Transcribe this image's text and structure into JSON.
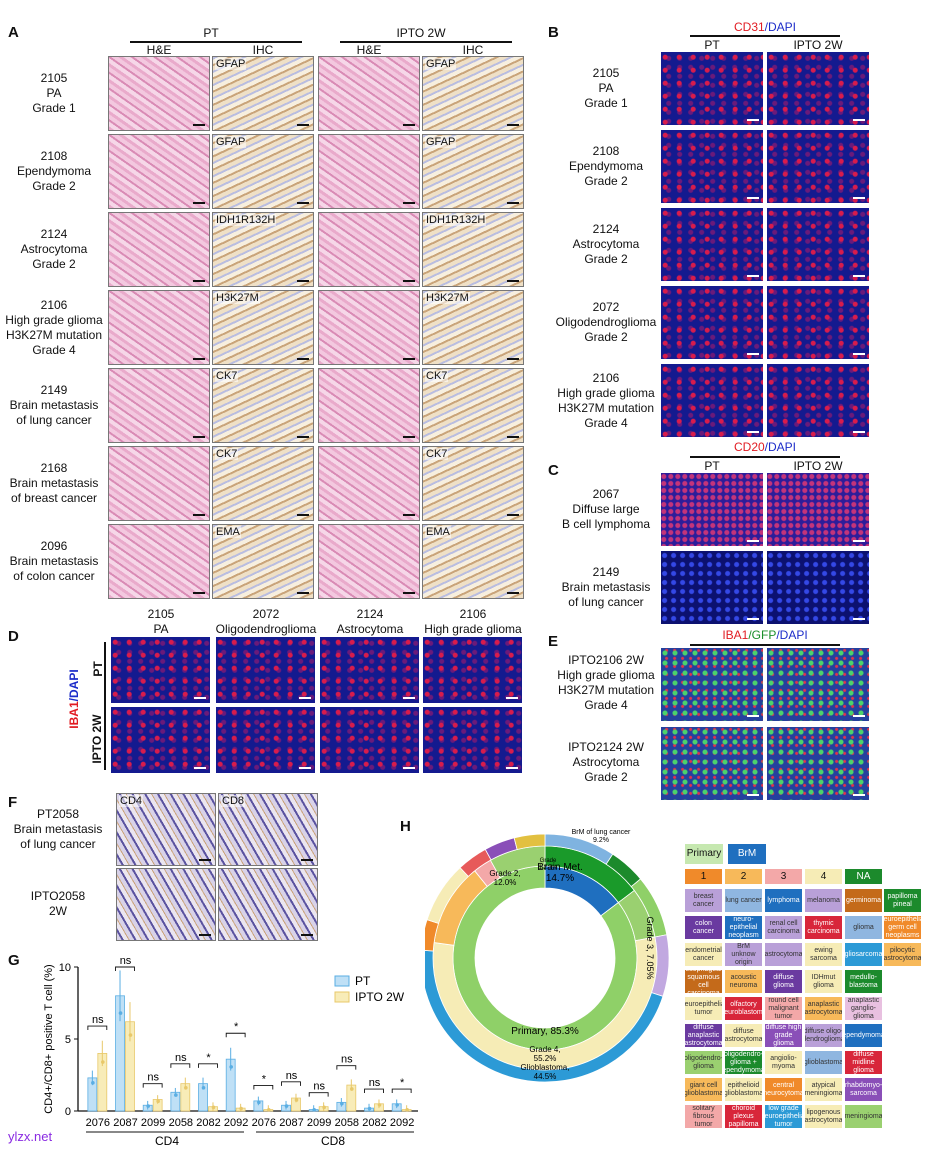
{
  "panelA": {
    "label": "A",
    "group_pt": "PT",
    "group_ipto": "IPTO 2W",
    "sub_he": "H&E",
    "sub_ihc": "IHC",
    "rows": [
      {
        "label": "2105\nPA\nGrade 1",
        "stain": "GFAP"
      },
      {
        "label": "2108\nEpendymoma\nGrade 2",
        "stain": "GFAP"
      },
      {
        "label": "2124\nAstrocytoma\nGrade 2",
        "stain": "IDH1R132H"
      },
      {
        "label": "2106\nHigh grade glioma\nH3K27M mutation\nGrade 4",
        "stain": "H3K27M"
      },
      {
        "label": "2149\nBrain metastasis\nof  lung cancer",
        "stain": "CK7"
      },
      {
        "label": "2168\nBrain metastasis\nof  breast cancer",
        "stain": "CK7"
      },
      {
        "label": "2096\nBrain metastasis\nof  colon cancer",
        "stain": "EMA"
      }
    ]
  },
  "panelB": {
    "label": "B",
    "title_red": "CD31",
    "title_blue": "/DAPI",
    "col_pt": "PT",
    "col_ipto": "IPTO 2W",
    "rows": [
      "2105\nPA\nGrade 1",
      "2108\nEpendymoma\nGrade 2",
      "2124\nAstrocytoma\nGrade 2",
      "2072\nOligodendroglioma\nGrade 2",
      "2106\nHigh grade glioma\nH3K27M mutation\nGrade 4"
    ]
  },
  "panelC": {
    "label": "C",
    "title_red": "CD20",
    "title_blue": "/DAPI",
    "col_pt": "PT",
    "col_ipto": "IPTO 2W",
    "rows": [
      "2067\nDiffuse large\nB cell lymphoma",
      "2149\nBrain metastasis\nof lung cancer"
    ]
  },
  "panelD": {
    "label": "D",
    "cols": [
      "2105\nPA",
      "2072\nOligodendroglioma",
      "2124\nAstrocytoma",
      "2106\nHigh grade glioma"
    ],
    "side_red": "IBA1",
    "side_blue": "/DAPI",
    "row_pt": "PT",
    "row_ipto": "IPTO 2W"
  },
  "panelE": {
    "label": "E",
    "title_red": "IBA1",
    "title_green": "/GFP",
    "title_blue": "/DAPI",
    "rows": [
      "IPTO2106 2W\nHigh grade glioma\nH3K27M mutation\nGrade 4",
      "IPTO2124 2W\nAstrocytoma\nGrade 2"
    ]
  },
  "panelF": {
    "label": "F",
    "stain_cd4": "CD4",
    "stain_cd8": "CD8",
    "rows": [
      "PT2058\nBrain metastasis\nof  lung cancer",
      "IPTO2058\n2W"
    ]
  },
  "panelG": {
    "label": "G"
  },
  "panelH": {
    "label": "H",
    "ring_labels": {
      "brm_lung": "BrM of lung cancer\n9.2%",
      "grade2": "Grade 2,\n12.0%",
      "grade1": "Grade\n1,2.7%",
      "brain_met": "Brain Met.\n14.7%",
      "grade3": "Grade 3,\n7.05%",
      "primary": "Primary, 85.3%",
      "grade4": "Grade 4,\n55.2%",
      "gbm": "Glioblastoma,\n44.5%"
    },
    "legend_head": [
      "Primary",
      "BrM"
    ],
    "legend_nums": [
      "1",
      "2",
      "3",
      "4",
      "NA"
    ],
    "legend_rows": [
      [
        "breast\ncancer",
        "lung\ncancer",
        "lymphoma",
        "melanoma",
        "germinoma",
        "papilloma\npineal"
      ],
      [
        "colon\ncancer",
        "neuro-\nepithelial\nneoplasm",
        "renal cell\ncarcinoma",
        "thymic\ncarcinoma",
        "glioma",
        "neuroepithelial\ngerm cell\nneoplasms"
      ],
      [
        "endometrial\ncancer",
        "BrM unknow\norigin",
        "astrocytoma",
        "ewing\nsarcoma",
        "gliosarcoma",
        "pilocytic\nastrocytoma"
      ],
      [
        "esophageal\nsquamous\ncell carcinoma",
        "acoustic\nneuroma",
        "diffuse\nglioma",
        "IDHmut\nglioma",
        "medullo-\nblastoma",
        ""
      ],
      [
        "neuroepithelial\ntumor",
        "olfactory\nneuroblastoma",
        "round cell\nmalignant\ntumor",
        "anaplastic\nastrocytoma",
        "anaplastic\nganglio-\nglioma",
        ""
      ],
      [
        "diffuse\nanaplastic\nastrocytoma",
        "diffuse\nastrocytoma",
        "diffuse high\ngrade glioma",
        "diffuse oligo-\ndendroglioma",
        "ependymoma",
        ""
      ],
      [
        "oligodendro-\nglioma",
        "oligodendro-\nglioma +\nependymoma",
        "angiolio-\nmyoma",
        "glioblastoma",
        "diffuse\nmidline\nglioma",
        ""
      ],
      [
        "giant cell\nglioblastoma",
        "epithelioid\nglioblastoma",
        "central\nneurocytoma",
        "atypical\nmeningioma",
        "rhabdomyo-\nsarcoma",
        ""
      ],
      [
        "solitary\nfibrous\ntumor",
        "choroid\nplexus\npapilloma",
        "low grade\nneuroepithelial\ntumor",
        "lipogenous\nastrocytoma",
        "meningioma",
        ""
      ]
    ]
  },
  "chart_data": {
    "type": "bar",
    "ylabel": "CD4+/CD8+ positive T cell (%)",
    "ylim": [
      0,
      10
    ],
    "yticks": [
      "0",
      "5",
      "10"
    ],
    "groups": [
      "CD4",
      "CD8"
    ],
    "categories": [
      "2076",
      "2087",
      "2099",
      "2058",
      "2082",
      "2092",
      "2076",
      "2087",
      "2099",
      "2058",
      "2082",
      "2092"
    ],
    "series": [
      {
        "name": "PT",
        "color": "#bfe0f6",
        "edge": "#5aaee3",
        "values": [
          2.3,
          8.0,
          0.4,
          1.3,
          1.9,
          3.6,
          0.7,
          0.4,
          0.1,
          0.6,
          0.2,
          0.5
        ]
      },
      {
        "name": "IPTO 2W",
        "color": "#f8ecb8",
        "edge": "#e8c86a",
        "values": [
          4.0,
          6.2,
          0.8,
          1.9,
          0.3,
          0.2,
          0.1,
          0.9,
          0.3,
          1.8,
          0.5,
          0.1
        ]
      }
    ],
    "significance": [
      "ns",
      "ns",
      "ns",
      "ns",
      "*",
      "*",
      "*",
      "ns",
      "ns",
      "ns",
      "ns",
      "*"
    ]
  },
  "watermark": "ylzx.net",
  "colors": {
    "red": "#e11b22",
    "blue": "#1c2cc9",
    "green": "#1a8f2a"
  }
}
